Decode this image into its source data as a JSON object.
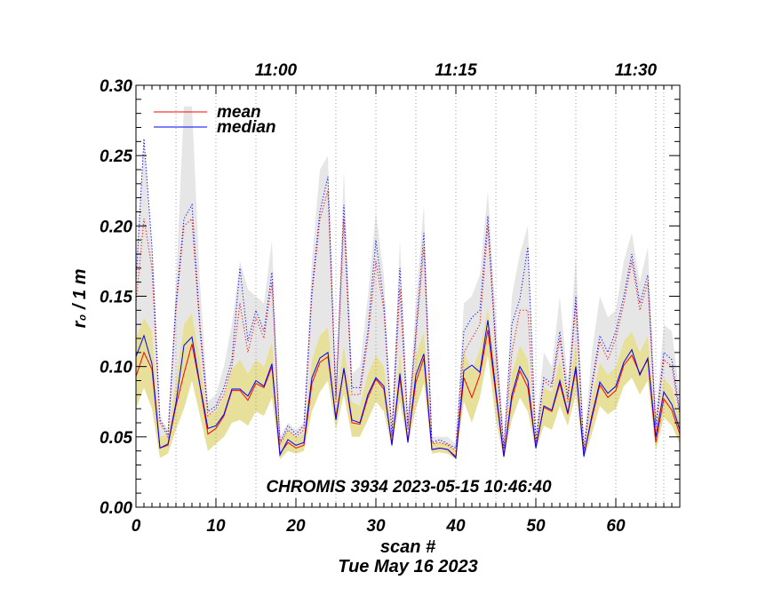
{
  "chart_data": {
    "type": "line",
    "title": "CHROMIS 3934 2023-05-15 10:46:40",
    "xlabel": "scan #",
    "xlabel2": "Tue May 16 2023",
    "ylabel": "r₀ / 1 m",
    "xlim": [
      0,
      68
    ],
    "ylim": [
      0.0,
      0.3
    ],
    "x_ticks": [
      "0",
      "10",
      "20",
      "30",
      "40",
      "50",
      "60"
    ],
    "y_ticks": [
      "0.00",
      "0.05",
      "0.10",
      "0.15",
      "0.20",
      "0.25",
      "0.30"
    ],
    "top_axis": {
      "labels": [
        {
          "text": "11:00",
          "x": 17.5
        },
        {
          "text": "11:15",
          "x": 40.0
        },
        {
          "text": "11:30",
          "x": 62.5
        }
      ]
    },
    "session_markers": [
      5,
      10,
      15,
      20,
      25,
      30,
      35,
      40,
      45,
      50,
      55,
      60,
      65,
      66
    ],
    "legend": [
      {
        "label": "mean",
        "color": "#ff0000"
      },
      {
        "label": "median",
        "color": "#0000ff"
      }
    ],
    "colors": {
      "mean": "#ff0000",
      "median": "#0000ff",
      "band_low": "#e6e09a",
      "band_high": "#e6e6e6"
    },
    "series": [
      {
        "name": "mean",
        "line": "solid",
        "values": [
          0.093,
          0.11,
          0.098,
          0.042,
          0.044,
          0.072,
          0.095,
          0.116,
          0.086,
          0.052,
          0.056,
          0.065,
          0.083,
          0.083,
          0.076,
          0.088,
          0.085,
          0.1,
          0.038,
          0.046,
          0.042,
          0.044,
          0.088,
          0.103,
          0.107,
          0.064,
          0.098,
          0.06,
          0.059,
          0.078,
          0.091,
          0.084,
          0.045,
          0.092,
          0.047,
          0.089,
          0.106,
          0.041,
          0.042,
          0.041,
          0.036,
          0.092,
          0.078,
          0.094,
          0.126,
          0.08,
          0.036,
          0.077,
          0.097,
          0.085,
          0.043,
          0.071,
          0.068,
          0.088,
          0.066,
          0.098,
          0.037,
          0.063,
          0.087,
          0.078,
          0.083,
          0.101,
          0.108,
          0.095,
          0.105,
          0.046,
          0.077,
          0.069,
          0.052
        ]
      },
      {
        "name": "median",
        "line": "solid",
        "values": [
          0.107,
          0.122,
          0.102,
          0.042,
          0.045,
          0.074,
          0.115,
          0.121,
          0.087,
          0.056,
          0.058,
          0.066,
          0.084,
          0.084,
          0.079,
          0.09,
          0.086,
          0.102,
          0.037,
          0.048,
          0.044,
          0.046,
          0.092,
          0.106,
          0.11,
          0.062,
          0.099,
          0.062,
          0.06,
          0.08,
          0.092,
          0.086,
          0.044,
          0.095,
          0.046,
          0.094,
          0.109,
          0.041,
          0.042,
          0.041,
          0.035,
          0.097,
          0.101,
          0.096,
          0.133,
          0.083,
          0.036,
          0.08,
          0.1,
          0.09,
          0.042,
          0.072,
          0.069,
          0.09,
          0.067,
          0.1,
          0.036,
          0.065,
          0.089,
          0.081,
          0.086,
          0.103,
          0.112,
          0.094,
          0.106,
          0.05,
          0.082,
          0.073,
          0.055
        ]
      },
      {
        "name": "mean_upper",
        "line": "dotted",
        "color": "#ff0000",
        "values": [
          0.145,
          0.205,
          0.17,
          0.06,
          0.05,
          0.14,
          0.2,
          0.205,
          0.125,
          0.065,
          0.07,
          0.08,
          0.1,
          0.145,
          0.11,
          0.135,
          0.12,
          0.16,
          0.045,
          0.055,
          0.05,
          0.055,
          0.15,
          0.205,
          0.225,
          0.075,
          0.205,
          0.08,
          0.08,
          0.12,
          0.175,
          0.14,
          0.05,
          0.155,
          0.055,
          0.12,
          0.185,
          0.045,
          0.046,
          0.044,
          0.04,
          0.11,
          0.12,
          0.13,
          0.2,
          0.11,
          0.04,
          0.11,
          0.14,
          0.14,
          0.045,
          0.09,
          0.085,
          0.12,
          0.075,
          0.145,
          0.04,
          0.085,
          0.118,
          0.105,
          0.12,
          0.145,
          0.175,
          0.14,
          0.16,
          0.055,
          0.105,
          0.1,
          0.065
        ]
      },
      {
        "name": "median_upper",
        "line": "dotted",
        "color": "#0000ff",
        "values": [
          0.16,
          0.262,
          0.185,
          0.062,
          0.052,
          0.145,
          0.205,
          0.215,
          0.13,
          0.068,
          0.072,
          0.085,
          0.105,
          0.17,
          0.118,
          0.14,
          0.125,
          0.167,
          0.046,
          0.058,
          0.052,
          0.058,
          0.155,
          0.21,
          0.235,
          0.078,
          0.215,
          0.085,
          0.085,
          0.125,
          0.19,
          0.145,
          0.052,
          0.17,
          0.058,
          0.125,
          0.195,
          0.046,
          0.048,
          0.045,
          0.042,
          0.125,
          0.135,
          0.14,
          0.207,
          0.115,
          0.042,
          0.13,
          0.148,
          0.185,
          0.047,
          0.092,
          0.088,
          0.125,
          0.078,
          0.15,
          0.041,
          0.088,
          0.122,
          0.11,
          0.125,
          0.15,
          0.18,
          0.145,
          0.165,
          0.058,
          0.11,
          0.105,
          0.068
        ]
      }
    ],
    "band_low": {
      "lower": [
        0.07,
        0.085,
        0.07,
        0.035,
        0.038,
        0.055,
        0.07,
        0.09,
        0.065,
        0.04,
        0.045,
        0.05,
        0.06,
        0.062,
        0.058,
        0.068,
        0.065,
        0.078,
        0.034,
        0.04,
        0.038,
        0.04,
        0.068,
        0.082,
        0.09,
        0.055,
        0.08,
        0.05,
        0.05,
        0.062,
        0.075,
        0.068,
        0.042,
        0.075,
        0.044,
        0.07,
        0.088,
        0.038,
        0.039,
        0.038,
        0.034,
        0.075,
        0.06,
        0.078,
        0.108,
        0.062,
        0.034,
        0.062,
        0.078,
        0.068,
        0.04,
        0.058,
        0.055,
        0.072,
        0.058,
        0.08,
        0.034,
        0.052,
        0.072,
        0.066,
        0.07,
        0.086,
        0.092,
        0.08,
        0.09,
        0.04,
        0.064,
        0.058,
        0.045
      ],
      "upper": [
        0.12,
        0.135,
        0.125,
        0.05,
        0.052,
        0.09,
        0.13,
        0.138,
        0.105,
        0.065,
        0.068,
        0.078,
        0.098,
        0.105,
        0.095,
        0.105,
        0.1,
        0.118,
        0.045,
        0.055,
        0.05,
        0.052,
        0.105,
        0.122,
        0.128,
        0.075,
        0.115,
        0.075,
        0.072,
        0.095,
        0.108,
        0.1,
        0.05,
        0.11,
        0.052,
        0.108,
        0.125,
        0.046,
        0.046,
        0.045,
        0.04,
        0.11,
        0.098,
        0.112,
        0.142,
        0.098,
        0.04,
        0.095,
        0.115,
        0.105,
        0.05,
        0.085,
        0.082,
        0.105,
        0.078,
        0.118,
        0.042,
        0.078,
        0.103,
        0.094,
        0.1,
        0.118,
        0.125,
        0.11,
        0.122,
        0.056,
        0.092,
        0.085,
        0.062
      ]
    },
    "band_high": {
      "lower": [
        0.12,
        0.135,
        0.125,
        0.05,
        0.052,
        0.09,
        0.13,
        0.138,
        0.105,
        0.065,
        0.068,
        0.078,
        0.098,
        0.105,
        0.095,
        0.105,
        0.1,
        0.118,
        0.045,
        0.055,
        0.05,
        0.052,
        0.105,
        0.122,
        0.128,
        0.075,
        0.115,
        0.075,
        0.072,
        0.095,
        0.108,
        0.1,
        0.05,
        0.11,
        0.052,
        0.108,
        0.125,
        0.046,
        0.046,
        0.045,
        0.04,
        0.11,
        0.098,
        0.112,
        0.142,
        0.098,
        0.04,
        0.095,
        0.115,
        0.105,
        0.05,
        0.085,
        0.082,
        0.105,
        0.078,
        0.118,
        0.042,
        0.078,
        0.103,
        0.094,
        0.1,
        0.118,
        0.125,
        0.11,
        0.122,
        0.056,
        0.092,
        0.085,
        0.062
      ],
      "upper": [
        0.17,
        0.265,
        0.19,
        0.065,
        0.055,
        0.16,
        0.285,
        0.285,
        0.16,
        0.075,
        0.08,
        0.1,
        0.13,
        0.175,
        0.155,
        0.15,
        0.145,
        0.19,
        0.05,
        0.06,
        0.055,
        0.06,
        0.175,
        0.24,
        0.25,
        0.085,
        0.24,
        0.095,
        0.1,
        0.15,
        0.21,
        0.165,
        0.06,
        0.19,
        0.065,
        0.145,
        0.215,
        0.05,
        0.05,
        0.05,
        0.045,
        0.145,
        0.15,
        0.165,
        0.225,
        0.135,
        0.045,
        0.15,
        0.18,
        0.2,
        0.055,
        0.11,
        0.1,
        0.15,
        0.09,
        0.18,
        0.045,
        0.11,
        0.15,
        0.135,
        0.14,
        0.175,
        0.195,
        0.16,
        0.185,
        0.065,
        0.13,
        0.125,
        0.08
      ]
    }
  }
}
